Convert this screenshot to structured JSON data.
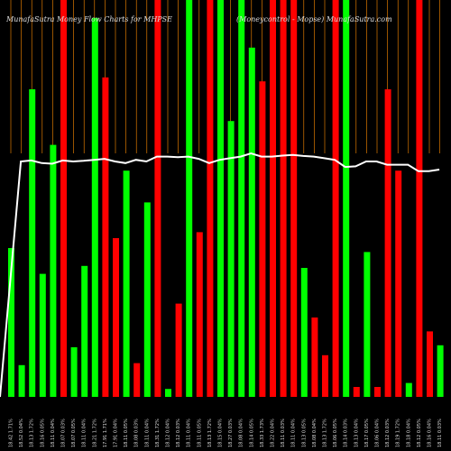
{
  "header": {
    "title_left": "MunafaSutra  Money Flow  Charts for MHPSE",
    "title_right": "(Moneycontrol - Mopse) MunafaSutra.com"
  },
  "colors": {
    "background": "#000000",
    "up": "#00ff00",
    "down": "#ff0000",
    "line": "#ffffff",
    "grid": "#ff8c00"
  },
  "chart_data": {
    "type": "bar",
    "ylim": [
      0,
      100
    ],
    "grid": "vertical",
    "categories": [
      "",
      "",
      "",
      "",
      "",
      "",
      "",
      "",
      "",
      "",
      "",
      "",
      "",
      "",
      "",
      "",
      "",
      "",
      "",
      "",
      "",
      "",
      "",
      "",
      "",
      "",
      "",
      "",
      "",
      "",
      "",
      "",
      "",
      "",
      "",
      "",
      "",
      "",
      "",
      "",
      "",
      ""
    ],
    "x_labels": [
      "18.42 1.71%",
      "18.52 0.04%",
      "18.13 1.72%",
      "18.16 0.05%",
      "18.11 0.04%",
      "18.07 0.03%",
      "18.07 0.05%",
      "18.11 0.04%",
      "18.21 1.72%",
      "17.91 1.71%",
      "17.91 0.04%",
      "18.11 0.05%",
      "18.08 0.03%",
      "18.11 0.04%",
      "18.31 1.72%",
      "18.12 0.04%",
      "18.12 0.03%",
      "18.11 0.04%",
      "18.11 0.05%",
      "18.13 1.72%",
      "18.15 0.04%",
      "18.27 0.03%",
      "18.08 0.04%",
      "18.14 0.05%",
      "18.33 1.73%",
      "18.22 0.04%",
      "18.11 0.03%",
      "18.11 0.04%",
      "18.13 0.05%",
      "18.08 0.04%",
      "18.13 1.72%",
      "18.06 0.05%",
      "18.14 0.03%",
      "18.13 0.04%",
      "18.17 0.05%",
      "18.06 0.04%",
      "18.12 0.03%",
      "18.19 1.72%",
      "18.18 0.04%",
      "18.12 0.05%",
      "18.16 0.04%",
      "18.11 0.03%"
    ],
    "series": [
      {
        "directions": [
          "up",
          "up",
          "up",
          "up",
          "up",
          "down",
          "up",
          "up",
          "up",
          "down",
          "down",
          "up",
          "down",
          "up",
          "down",
          "up",
          "down",
          "up",
          "down",
          "down",
          "up",
          "up",
          "up",
          "up",
          "down",
          "down",
          "down",
          "down",
          "up",
          "down",
          "down",
          "down",
          "up",
          "down",
          "up",
          "down",
          "down",
          "down",
          "up",
          "down",
          "down",
          "up"
        ],
        "values": [
          37.5,
          8.0,
          77.5,
          31.0,
          63.5,
          100,
          12.5,
          33.0,
          95.5,
          80.5,
          40.0,
          57.0,
          8.5,
          49.0,
          100,
          2.0,
          23.5,
          100,
          41.5,
          100,
          100,
          69.5,
          100,
          88.0,
          79.5,
          100,
          100,
          100,
          32.5,
          20.0,
          10.5,
          100,
          100,
          2.5,
          36.5,
          2.5,
          77.5,
          57.0,
          3.5,
          100,
          16.5,
          13.0
        ]
      }
    ],
    "line": [
      0,
      72.5,
      72.8,
      72,
      71.8,
      72.8,
      72.5,
      72.7,
      73,
      73.3,
      72.5,
      72,
      73,
      72.5,
      74,
      74,
      73.8,
      74,
      73.3,
      72,
      73,
      73.5,
      74,
      75,
      74,
      74,
      74.3,
      74.5,
      74.2,
      74,
      73.5,
      73,
      70.8,
      71,
      72.5,
      72.5,
      71.5,
      71.5,
      71.5,
      69.5,
      69.5,
      70
    ]
  }
}
